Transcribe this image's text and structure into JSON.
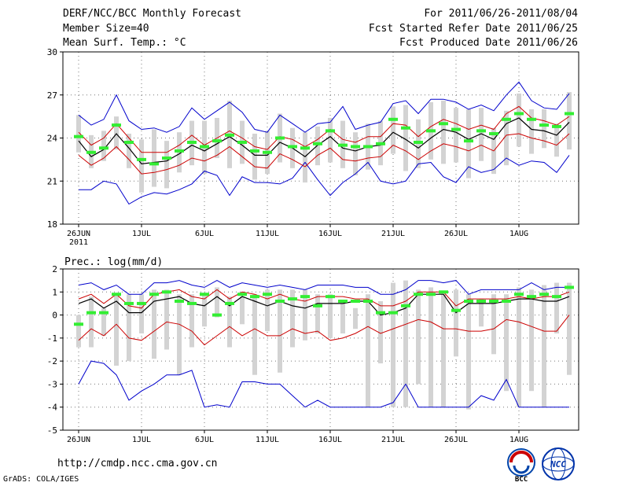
{
  "header": {
    "title": "DERF/NCC/BCC Monthly Forecast",
    "member_size": "Member Size=40",
    "variable": "Mean Surf. Temp.: °C",
    "period": "For 2011/06/26-2011/08/04",
    "started": "Fcst Started Refer Date 2011/06/25",
    "produced": "Fcst Produced Date 2011/06/26"
  },
  "footer": {
    "url": "http://cmdp.ncc.cma.gov.cn",
    "credit": "GrADS: COLA/IGES",
    "logo_left_text": "BCC",
    "logo_right_text": "NCC"
  },
  "colors": {
    "envelope": "#0000cc",
    "spread": "#cc0000",
    "mean": "#000000",
    "member_bar": "#d3d3d3",
    "median": "#33ee33"
  },
  "chart_data": [
    {
      "type": "line",
      "name": "temperature",
      "title": "Mean Surf. Temp.: °C",
      "xlabel": "",
      "ylabel": "°C",
      "ylim": [
        18,
        30
      ],
      "yticks": [
        18,
        21,
        24,
        27,
        30
      ],
      "grid": true,
      "x_ticks": [
        {
          "day": 1,
          "label": "26JUN",
          "sublabel": "2011"
        },
        {
          "day": 6,
          "label": "1JUL"
        },
        {
          "day": 11,
          "label": "6JUL"
        },
        {
          "day": 16,
          "label": "11JUL"
        },
        {
          "day": 21,
          "label": "16JUL"
        },
        {
          "day": 26,
          "label": "21JUL"
        },
        {
          "day": 31,
          "label": "26JUL"
        },
        {
          "day": 36,
          "label": "1AUG"
        }
      ],
      "x": [
        1,
        2,
        3,
        4,
        5,
        6,
        7,
        8,
        9,
        10,
        11,
        12,
        13,
        14,
        15,
        16,
        17,
        18,
        19,
        20,
        21,
        22,
        23,
        24,
        25,
        26,
        27,
        28,
        29,
        30,
        31,
        32,
        33,
        34,
        35,
        36,
        37,
        38,
        39,
        40
      ],
      "series": [
        {
          "name": "max",
          "role": "envelope",
          "values": [
            25.6,
            24.9,
            25.3,
            27.0,
            25.2,
            24.6,
            24.7,
            24.4,
            24.8,
            26.1,
            25.3,
            25.9,
            26.5,
            25.8,
            24.6,
            24.4,
            25.6,
            25.0,
            24.4,
            25.0,
            25.1,
            26.2,
            24.6,
            24.9,
            25.1,
            26.4,
            26.6,
            25.7,
            26.7,
            26.7,
            26.5,
            26.0,
            26.3,
            25.9,
            27.0,
            27.9,
            26.6,
            26.1,
            26.0,
            27.1
          ]
        },
        {
          "name": "upper",
          "role": "spread",
          "values": [
            24.4,
            23.5,
            24.0,
            25.0,
            24.0,
            23.0,
            23.0,
            23.0,
            23.5,
            24.2,
            23.5,
            24.0,
            24.5,
            24.0,
            23.4,
            23.2,
            24.1,
            23.9,
            23.4,
            23.9,
            24.6,
            23.9,
            23.7,
            24.1,
            24.1,
            25.0,
            24.9,
            24.1,
            24.8,
            25.3,
            25.0,
            24.6,
            24.9,
            24.6,
            25.7,
            26.2,
            25.4,
            25.2,
            24.9,
            25.5
          ]
        },
        {
          "name": "mean",
          "role": "mean",
          "values": [
            23.8,
            22.7,
            23.2,
            24.3,
            23.3,
            22.2,
            22.3,
            22.4,
            22.9,
            23.5,
            23.1,
            23.6,
            24.1,
            23.5,
            22.8,
            22.8,
            23.7,
            23.3,
            22.7,
            23.5,
            24.1,
            23.3,
            23.1,
            23.4,
            23.5,
            24.4,
            23.9,
            23.3,
            24.0,
            24.6,
            24.4,
            23.9,
            24.3,
            23.9,
            25.0,
            25.4,
            24.6,
            24.5,
            24.2,
            25.1
          ]
        },
        {
          "name": "lower",
          "role": "spread",
          "values": [
            22.8,
            22.1,
            22.6,
            23.4,
            22.5,
            21.5,
            21.6,
            21.8,
            22.1,
            22.6,
            22.4,
            22.8,
            23.4,
            22.7,
            22.0,
            21.9,
            22.9,
            22.5,
            22.0,
            22.8,
            23.3,
            22.5,
            22.4,
            22.6,
            22.7,
            23.5,
            23.1,
            22.5,
            23.1,
            23.6,
            23.4,
            23.1,
            23.5,
            23.1,
            24.2,
            24.3,
            24.0,
            23.8,
            23.5,
            24.3
          ]
        },
        {
          "name": "min",
          "role": "envelope",
          "values": [
            20.4,
            20.4,
            21.0,
            20.8,
            19.4,
            19.9,
            20.2,
            20.1,
            20.4,
            20.8,
            21.7,
            21.4,
            20.0,
            21.3,
            20.9,
            20.9,
            20.8,
            21.2,
            22.3,
            21.1,
            20.0,
            20.9,
            21.5,
            22.3,
            21.0,
            20.8,
            21.0,
            22.2,
            22.3,
            21.3,
            20.9,
            22.0,
            21.6,
            21.8,
            22.6,
            22.1,
            22.4,
            22.3,
            21.6,
            22.8
          ]
        },
        {
          "name": "bar_high",
          "role": "bar_top",
          "values": [
            25.6,
            24.2,
            24.5,
            25.5,
            24.3,
            23.9,
            24.6,
            23.8,
            24.4,
            25.2,
            25.2,
            25.4,
            26.6,
            25.2,
            24.3,
            24.5,
            25.7,
            24.7,
            24.4,
            24.8,
            25.4,
            25.2,
            24.4,
            25.0,
            25.2,
            26.2,
            26.3,
            25.3,
            26.5,
            26.6,
            26.1,
            26.0,
            26.1,
            24.7,
            25.9,
            27.1,
            26.0,
            26.0,
            25.0,
            27.2
          ]
        },
        {
          "name": "bar_low",
          "role": "bar_bottom",
          "values": [
            23.0,
            21.9,
            22.4,
            23.2,
            21.9,
            20.2,
            20.6,
            20.5,
            21.6,
            22.1,
            21.5,
            22.6,
            21.9,
            22.2,
            21.1,
            21.5,
            22.3,
            21.9,
            20.9,
            22.1,
            22.3,
            21.9,
            21.4,
            21.8,
            22.1,
            22.9,
            21.7,
            21.9,
            22.5,
            22.2,
            22.3,
            21.2,
            22.4,
            21.5,
            22.1,
            23.4,
            22.9,
            23.3,
            22.7,
            23.2
          ]
        },
        {
          "name": "median",
          "role": "green_marks",
          "values": [
            24.1,
            23.0,
            23.3,
            24.9,
            23.7,
            22.5,
            22.2,
            22.6,
            23.1,
            23.7,
            23.4,
            23.8,
            24.2,
            23.7,
            23.1,
            23.0,
            24.0,
            23.4,
            23.3,
            23.6,
            24.5,
            23.5,
            23.4,
            23.4,
            23.6,
            25.3,
            24.7,
            23.7,
            24.5,
            25.0,
            24.6,
            23.8,
            24.5,
            24.3,
            25.3,
            25.7,
            25.3,
            24.9,
            24.8,
            25.7
          ]
        }
      ]
    },
    {
      "type": "line",
      "name": "precipitation",
      "title": "Prec.: log(mm/d)",
      "xlabel": "",
      "ylabel": "log(mm/d)",
      "ylim": [
        -5,
        2
      ],
      "yticks": [
        -5,
        -4,
        -3,
        -2,
        -1,
        0,
        1,
        2
      ],
      "grid": true,
      "x_ticks": [
        {
          "day": 1,
          "label": "26JUN",
          "sublabel": "2011"
        },
        {
          "day": 6,
          "label": "1JUL"
        },
        {
          "day": 11,
          "label": "6JUL"
        },
        {
          "day": 16,
          "label": "11JUL"
        },
        {
          "day": 21,
          "label": "16JUL"
        },
        {
          "day": 26,
          "label": "21JUL"
        },
        {
          "day": 31,
          "label": "26JUL"
        },
        {
          "day": 36,
          "label": "1AUG"
        }
      ],
      "x": [
        1,
        2,
        3,
        4,
        5,
        6,
        7,
        8,
        9,
        10,
        11,
        12,
        13,
        14,
        15,
        16,
        17,
        18,
        19,
        20,
        21,
        22,
        23,
        24,
        25,
        26,
        27,
        28,
        29,
        30,
        31,
        32,
        33,
        34,
        35,
        36,
        37,
        38,
        39,
        40
      ],
      "series": [
        {
          "name": "max",
          "role": "envelope",
          "values": [
            1.3,
            1.4,
            1.1,
            1.3,
            0.9,
            0.9,
            1.4,
            1.4,
            1.5,
            1.3,
            1.2,
            1.5,
            1.2,
            1.4,
            1.3,
            1.2,
            1.3,
            1.2,
            1.1,
            1.3,
            1.3,
            1.3,
            1.2,
            1.2,
            0.9,
            0.9,
            1.1,
            1.5,
            1.5,
            1.4,
            1.5,
            0.9,
            1.1,
            1.1,
            1.1,
            1.1,
            1.4,
            1.1,
            1.2,
            1.2
          ]
        },
        {
          "name": "upper",
          "role": "spread",
          "values": [
            0.7,
            0.9,
            0.5,
            0.9,
            0.4,
            0.3,
            0.9,
            1.0,
            1.1,
            0.8,
            0.7,
            1.1,
            0.7,
            1.0,
            0.9,
            0.7,
            0.9,
            0.7,
            0.6,
            0.8,
            0.8,
            0.8,
            0.7,
            0.7,
            0.4,
            0.4,
            0.6,
            1.0,
            1.0,
            1.0,
            0.4,
            0.7,
            0.7,
            0.7,
            0.7,
            0.8,
            0.7,
            0.8,
            0.8,
            1.0
          ]
        },
        {
          "name": "mean",
          "role": "mean",
          "values": [
            0.5,
            0.7,
            0.3,
            0.6,
            0.1,
            0.1,
            0.6,
            0.7,
            0.8,
            0.5,
            0.4,
            0.8,
            0.4,
            0.8,
            0.6,
            0.4,
            0.6,
            0.4,
            0.3,
            0.5,
            0.5,
            0.5,
            0.6,
            0.6,
            0.0,
            0.1,
            0.3,
            0.9,
            0.9,
            0.9,
            0.1,
            0.5,
            0.5,
            0.5,
            0.6,
            0.7,
            0.7,
            0.6,
            0.6,
            0.8
          ]
        },
        {
          "name": "lower",
          "role": "spread",
          "values": [
            -1.1,
            -0.6,
            -0.9,
            -0.4,
            -1.0,
            -1.1,
            -0.7,
            -0.3,
            -0.4,
            -0.7,
            -1.3,
            -0.9,
            -0.5,
            -0.9,
            -0.6,
            -0.9,
            -0.9,
            -0.6,
            -0.8,
            -0.7,
            -1.1,
            -1.0,
            -0.8,
            -0.5,
            -0.8,
            -0.6,
            -0.4,
            -0.2,
            -0.3,
            -0.6,
            -0.6,
            -0.7,
            -0.7,
            -0.6,
            -0.2,
            -0.3,
            -0.5,
            -0.7,
            -0.7,
            0.0
          ]
        },
        {
          "name": "min",
          "role": "envelope",
          "values": [
            -3.0,
            -2.0,
            -2.1,
            -2.6,
            -3.7,
            -3.3,
            -3.0,
            -2.6,
            -2.6,
            -2.4,
            -4.0,
            -3.9,
            -4.0,
            -2.9,
            -2.9,
            -3.0,
            -3.0,
            -3.5,
            -4.0,
            -3.7,
            -4.0,
            -4.0,
            -4.0,
            -4.0,
            -4.0,
            -3.8,
            -3.0,
            -4.0,
            -4.0,
            -4.0,
            -4.0,
            -4.0,
            -3.5,
            -3.7,
            -2.8,
            -4.0,
            -4.0,
            -4.0,
            -4.0,
            -4.0
          ]
        },
        {
          "name": "bar_high",
          "role": "bar_top",
          "values": [
            0.0,
            0.8,
            0.3,
            0.9,
            0.9,
            0.9,
            1.1,
            1.1,
            0.9,
            0.9,
            0.9,
            1.2,
            0.8,
            0.8,
            0.9,
            1.1,
            1.1,
            1.1,
            1.1,
            0.9,
            0.9,
            0.5,
            0.3,
            0.9,
            0.6,
            1.4,
            1.5,
            1.1,
            1.2,
            0.9,
            1.1,
            0.9,
            0.7,
            0.9,
            0.9,
            1.2,
            1.1,
            1.3,
            1.4,
            1.4
          ]
        },
        {
          "name": "bar_low",
          "role": "bar_bottom",
          "values": [
            -1.4,
            -1.4,
            -0.9,
            -2.2,
            -2.0,
            -0.8,
            -1.9,
            -1.5,
            -2.6,
            -1.4,
            -0.5,
            -0.1,
            -1.4,
            -0.4,
            -2.6,
            -0.7,
            -2.5,
            -1.4,
            -1.1,
            -0.8,
            -1.0,
            -0.8,
            -0.6,
            -4.0,
            -2.1,
            -4.0,
            -4.0,
            -3.0,
            -4.0,
            -4.0,
            -1.8,
            -4.1,
            -0.5,
            -1.7,
            -3.3,
            -4.0,
            -3.3,
            -4.0,
            -0.8,
            -2.6
          ]
        },
        {
          "name": "median",
          "role": "green_marks",
          "values": [
            -0.4,
            0.1,
            0.1,
            0.9,
            0.5,
            0.5,
            0.9,
            1.0,
            0.6,
            0.5,
            0.9,
            0.0,
            0.5,
            0.9,
            0.8,
            0.9,
            0.6,
            0.7,
            0.8,
            0.4,
            0.8,
            0.6,
            0.6,
            0.6,
            0.1,
            0.1,
            0.4,
            0.9,
            0.9,
            1.0,
            0.2,
            0.6,
            0.6,
            0.6,
            0.6,
            0.9,
            0.8,
            0.9,
            0.8,
            1.2
          ]
        }
      ]
    }
  ]
}
